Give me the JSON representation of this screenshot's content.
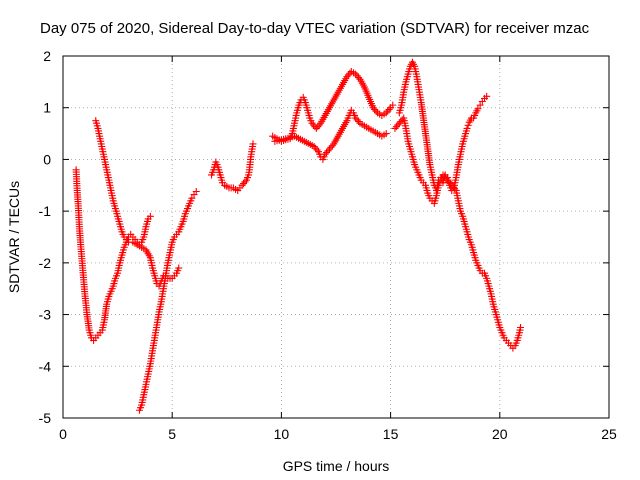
{
  "chart_data": {
    "type": "scatter",
    "title": "Day 075 of 2020, Sidereal Day-to-day VTEC variation (SDTVAR) for receiver mzac",
    "xlabel": "GPS time / hours",
    "ylabel": "SDTVAR / TECUs",
    "xlim": [
      0,
      25
    ],
    "ylim": [
      -5,
      2
    ],
    "xticks": [
      0,
      5,
      10,
      15,
      20,
      25
    ],
    "yticks": [
      -5,
      -4,
      -3,
      -2,
      -1,
      0,
      1,
      2
    ],
    "grid": true,
    "marker": "+",
    "color": "#ff0000",
    "series": [
      {
        "points": [
          [
            0.6,
            -0.2
          ],
          [
            0.65,
            -0.6
          ],
          [
            0.7,
            -0.9
          ],
          [
            0.75,
            -1.3
          ],
          [
            0.8,
            -1.6
          ],
          [
            0.9,
            -2.1
          ],
          [
            1.0,
            -2.6
          ],
          [
            1.1,
            -3.0
          ],
          [
            1.2,
            -3.3
          ],
          [
            1.3,
            -3.45
          ],
          [
            1.4,
            -3.5
          ],
          [
            1.5,
            -3.45
          ],
          [
            1.6,
            -3.4
          ],
          [
            1.7,
            -3.35
          ],
          [
            1.8,
            -3.3
          ],
          [
            1.9,
            -3.1
          ],
          [
            2.0,
            -2.8
          ],
          [
            2.1,
            -2.65
          ],
          [
            2.2,
            -2.55
          ],
          [
            2.3,
            -2.45
          ],
          [
            2.4,
            -2.3
          ],
          [
            2.5,
            -2.2
          ],
          [
            2.6,
            -2.0
          ],
          [
            2.7,
            -1.85
          ],
          [
            2.8,
            -1.7
          ],
          [
            2.9,
            -1.6
          ],
          [
            3.0,
            -1.5
          ],
          [
            3.1,
            -1.45
          ],
          [
            3.2,
            -1.5
          ],
          [
            3.3,
            -1.55
          ],
          [
            3.4,
            -1.6
          ],
          [
            3.5,
            -1.65
          ],
          [
            3.6,
            -1.6
          ],
          [
            3.7,
            -1.5
          ],
          [
            3.8,
            -1.3
          ],
          [
            3.9,
            -1.15
          ],
          [
            4.0,
            -1.1
          ]
        ]
      },
      {
        "points": [
          [
            1.5,
            0.75
          ],
          [
            1.6,
            0.6
          ],
          [
            1.7,
            0.4
          ],
          [
            1.8,
            0.2
          ],
          [
            1.9,
            0.0
          ],
          [
            2.0,
            -0.2
          ],
          [
            2.1,
            -0.4
          ],
          [
            2.2,
            -0.6
          ],
          [
            2.3,
            -0.8
          ],
          [
            2.4,
            -0.95
          ],
          [
            2.5,
            -1.1
          ],
          [
            2.6,
            -1.25
          ],
          [
            2.7,
            -1.4
          ],
          [
            2.8,
            -1.5
          ],
          [
            2.9,
            -1.55
          ],
          [
            3.0,
            -1.6
          ],
          [
            3.2,
            -1.6
          ],
          [
            3.4,
            -1.65
          ],
          [
            3.6,
            -1.7
          ],
          [
            3.8,
            -1.75
          ],
          [
            4.0,
            -1.9
          ],
          [
            4.1,
            -2.1
          ],
          [
            4.2,
            -2.25
          ],
          [
            4.3,
            -2.4
          ],
          [
            4.4,
            -2.45
          ],
          [
            4.5,
            -2.35
          ],
          [
            4.6,
            -2.25
          ],
          [
            4.7,
            -2.25
          ],
          [
            4.8,
            -2.3
          ],
          [
            4.9,
            -2.3
          ],
          [
            5.0,
            -2.3
          ],
          [
            5.1,
            -2.25
          ],
          [
            5.2,
            -2.2
          ],
          [
            5.3,
            -2.1
          ]
        ]
      },
      {
        "points": [
          [
            3.5,
            -4.85
          ],
          [
            3.6,
            -4.75
          ],
          [
            3.7,
            -4.55
          ],
          [
            3.8,
            -4.35
          ],
          [
            3.9,
            -4.15
          ],
          [
            4.0,
            -3.95
          ],
          [
            4.1,
            -3.7
          ],
          [
            4.2,
            -3.45
          ],
          [
            4.3,
            -3.2
          ],
          [
            4.4,
            -2.95
          ],
          [
            4.5,
            -2.75
          ],
          [
            4.6,
            -2.5
          ],
          [
            4.7,
            -2.25
          ],
          [
            4.8,
            -2.0
          ],
          [
            4.9,
            -1.8
          ],
          [
            5.0,
            -1.6
          ],
          [
            5.1,
            -1.5
          ],
          [
            5.2,
            -1.45
          ],
          [
            5.3,
            -1.4
          ],
          [
            5.4,
            -1.3
          ],
          [
            5.5,
            -1.2
          ],
          [
            5.6,
            -1.05
          ],
          [
            5.7,
            -0.95
          ],
          [
            5.8,
            -0.85
          ],
          [
            5.9,
            -0.75
          ],
          [
            6.0,
            -0.68
          ],
          [
            6.1,
            -0.62
          ]
        ]
      },
      {
        "points": [
          [
            6.8,
            -0.3
          ],
          [
            6.9,
            -0.2
          ],
          [
            7.0,
            -0.05
          ],
          [
            7.1,
            -0.15
          ],
          [
            7.2,
            -0.3
          ],
          [
            7.3,
            -0.45
          ],
          [
            7.4,
            -0.5
          ],
          [
            7.5,
            -0.52
          ],
          [
            7.6,
            -0.55
          ],
          [
            7.7,
            -0.55
          ],
          [
            7.8,
            -0.55
          ],
          [
            7.9,
            -0.58
          ],
          [
            8.0,
            -0.6
          ],
          [
            8.1,
            -0.55
          ],
          [
            8.2,
            -0.5
          ],
          [
            8.4,
            -0.4
          ],
          [
            8.5,
            -0.3
          ],
          [
            8.55,
            -0.15
          ],
          [
            8.6,
            0.05
          ],
          [
            8.7,
            0.3
          ]
        ]
      },
      {
        "points": [
          [
            9.6,
            0.45
          ],
          [
            9.8,
            0.4
          ],
          [
            10.0,
            0.35
          ],
          [
            10.2,
            0.38
          ],
          [
            10.4,
            0.4
          ],
          [
            10.5,
            0.5
          ],
          [
            10.6,
            0.7
          ],
          [
            10.7,
            0.9
          ],
          [
            10.8,
            1.05
          ],
          [
            10.9,
            1.15
          ],
          [
            11.0,
            1.2
          ],
          [
            11.1,
            1.1
          ],
          [
            11.2,
            0.95
          ],
          [
            11.3,
            0.8
          ],
          [
            11.4,
            0.7
          ],
          [
            11.6,
            0.6
          ],
          [
            11.8,
            0.7
          ],
          [
            12.0,
            0.85
          ],
          [
            12.2,
            1.0
          ],
          [
            12.4,
            1.15
          ],
          [
            12.6,
            1.3
          ],
          [
            12.8,
            1.45
          ],
          [
            13.0,
            1.6
          ],
          [
            13.2,
            1.7
          ],
          [
            13.4,
            1.65
          ],
          [
            13.6,
            1.55
          ],
          [
            13.8,
            1.4
          ],
          [
            14.0,
            1.2
          ],
          [
            14.2,
            1.0
          ],
          [
            14.4,
            0.9
          ],
          [
            14.6,
            0.85
          ],
          [
            14.8,
            0.9
          ],
          [
            15.0,
            1.0
          ],
          [
            15.1,
            1.05
          ]
        ]
      },
      {
        "points": [
          [
            9.7,
            0.35
          ],
          [
            10.0,
            0.38
          ],
          [
            10.2,
            0.4
          ],
          [
            10.4,
            0.42
          ],
          [
            10.6,
            0.45
          ],
          [
            11.5,
            0.25
          ],
          [
            11.7,
            0.15
          ],
          [
            11.8,
            0.05
          ],
          [
            11.9,
            0.0
          ],
          [
            12.0,
            0.1
          ],
          [
            12.2,
            0.2
          ],
          [
            12.4,
            0.3
          ],
          [
            12.6,
            0.45
          ],
          [
            12.8,
            0.6
          ],
          [
            13.0,
            0.75
          ],
          [
            13.1,
            0.85
          ],
          [
            13.2,
            0.95
          ],
          [
            13.3,
            0.9
          ],
          [
            13.4,
            0.8
          ],
          [
            13.6,
            0.7
          ],
          [
            13.8,
            0.65
          ],
          [
            14.0,
            0.6
          ],
          [
            14.2,
            0.55
          ],
          [
            14.4,
            0.5
          ],
          [
            14.6,
            0.45
          ],
          [
            14.8,
            0.5
          ]
        ]
      },
      {
        "points": [
          [
            15.2,
            0.6
          ],
          [
            15.4,
            0.7
          ],
          [
            15.6,
            0.8
          ],
          [
            15.7,
            0.6
          ],
          [
            15.8,
            0.35
          ],
          [
            15.9,
            0.2
          ],
          [
            16.0,
            0.05
          ],
          [
            16.1,
            -0.1
          ],
          [
            16.2,
            -0.2
          ],
          [
            16.3,
            -0.3
          ],
          [
            16.4,
            -0.4
          ],
          [
            16.5,
            -0.45
          ],
          [
            16.6,
            -0.5
          ],
          [
            16.7,
            -0.65
          ],
          [
            16.8,
            -0.75
          ],
          [
            16.9,
            -0.8
          ],
          [
            17.0,
            -0.85
          ],
          [
            17.1,
            -0.7
          ],
          [
            17.2,
            -0.5
          ],
          [
            17.3,
            -0.4
          ],
          [
            17.4,
            -0.3
          ],
          [
            17.6,
            -0.4
          ],
          [
            17.8,
            -0.5
          ],
          [
            18.0,
            -0.6
          ],
          [
            18.1,
            -0.8
          ],
          [
            18.2,
            -1.0
          ],
          [
            18.3,
            -1.1
          ],
          [
            18.4,
            -1.25
          ],
          [
            18.5,
            -1.4
          ],
          [
            18.6,
            -1.55
          ],
          [
            18.7,
            -1.65
          ],
          [
            18.8,
            -1.8
          ],
          [
            18.9,
            -1.95
          ],
          [
            19.0,
            -2.05
          ],
          [
            19.1,
            -2.15
          ],
          [
            19.2,
            -2.2
          ],
          [
            19.3,
            -2.2
          ],
          [
            19.4,
            -2.3
          ],
          [
            19.5,
            -2.45
          ],
          [
            19.6,
            -2.6
          ],
          [
            19.7,
            -2.8
          ],
          [
            19.8,
            -2.95
          ],
          [
            19.9,
            -3.1
          ],
          [
            20.0,
            -3.25
          ],
          [
            20.1,
            -3.35
          ],
          [
            20.2,
            -3.45
          ],
          [
            20.3,
            -3.5
          ],
          [
            20.4,
            -3.55
          ],
          [
            20.5,
            -3.6
          ],
          [
            20.6,
            -3.65
          ],
          [
            20.7,
            -3.6
          ],
          [
            20.8,
            -3.5
          ],
          [
            20.9,
            -3.35
          ],
          [
            20.95,
            -3.25
          ]
        ]
      },
      {
        "points": [
          [
            15.4,
            0.9
          ],
          [
            15.5,
            1.05
          ],
          [
            15.6,
            1.3
          ],
          [
            15.7,
            1.5
          ],
          [
            15.8,
            1.65
          ],
          [
            15.9,
            1.8
          ],
          [
            16.0,
            1.88
          ],
          [
            16.1,
            1.8
          ],
          [
            16.2,
            1.6
          ],
          [
            16.3,
            1.35
          ],
          [
            16.4,
            1.1
          ],
          [
            16.5,
            0.8
          ],
          [
            16.6,
            0.5
          ],
          [
            16.7,
            0.2
          ],
          [
            16.8,
            -0.1
          ],
          [
            16.9,
            -0.3
          ],
          [
            17.0,
            -0.5
          ],
          [
            17.1,
            -0.6
          ],
          [
            17.2,
            -0.4
          ],
          [
            17.3,
            -0.35
          ],
          [
            17.4,
            -0.45
          ],
          [
            17.5,
            -0.3
          ],
          [
            17.6,
            -0.35
          ],
          [
            17.7,
            -0.5
          ],
          [
            17.8,
            -0.6
          ],
          [
            17.9,
            -0.55
          ],
          [
            18.0,
            -0.35
          ],
          [
            18.1,
            -0.1
          ],
          [
            18.2,
            0.1
          ],
          [
            18.3,
            0.3
          ],
          [
            18.4,
            0.45
          ],
          [
            18.5,
            0.6
          ],
          [
            18.6,
            0.72
          ],
          [
            18.7,
            0.8
          ],
          [
            18.8,
            0.8
          ],
          [
            18.9,
            0.9
          ],
          [
            19.0,
            0.98
          ],
          [
            19.1,
            1.05
          ],
          [
            19.2,
            1.12
          ],
          [
            19.3,
            1.18
          ],
          [
            19.4,
            1.22
          ]
        ]
      }
    ]
  }
}
